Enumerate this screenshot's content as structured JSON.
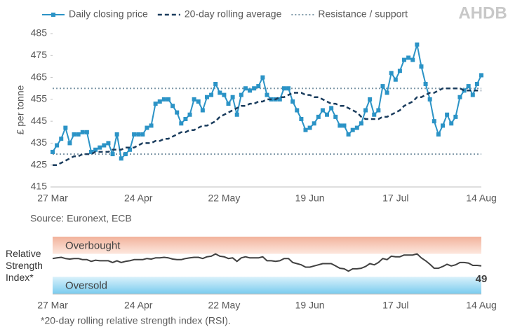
{
  "logo": "AHDB",
  "chart_data": [
    {
      "type": "line",
      "ylabel": "£ per tonne",
      "source": "Source: Euronext, ECB",
      "legend": "top",
      "categories": [
        "27 Mar",
        null,
        null,
        null,
        null,
        null,
        null,
        null,
        null,
        null,
        null,
        null,
        null,
        null,
        null,
        null,
        null,
        null,
        null,
        null,
        "24 Apr",
        null,
        null,
        null,
        null,
        null,
        null,
        null,
        null,
        null,
        null,
        null,
        null,
        null,
        null,
        null,
        null,
        null,
        null,
        null,
        "22 May",
        null,
        null,
        null,
        null,
        null,
        null,
        null,
        null,
        null,
        null,
        null,
        null,
        null,
        null,
        null,
        null,
        null,
        null,
        null,
        "19 Jun",
        null,
        null,
        null,
        null,
        null,
        null,
        null,
        null,
        null,
        null,
        null,
        null,
        null,
        null,
        null,
        null,
        null,
        null,
        null,
        "17 Jul",
        null,
        null,
        null,
        null,
        null,
        null,
        null,
        null,
        null,
        null,
        null,
        null,
        null,
        null,
        null,
        null,
        null,
        null,
        null,
        "14 Aug"
      ],
      "ylim": [
        415,
        485
      ],
      "yticks": [
        415,
        425,
        435,
        445,
        455,
        465,
        475,
        485
      ],
      "series": [
        {
          "name": "Daily closing price",
          "color": "#2b93c6",
          "markers": true,
          "dashed": false,
          "values": [
            431,
            434,
            437,
            442,
            435,
            439,
            439,
            440,
            440,
            431,
            432,
            433,
            434,
            435,
            430,
            439,
            428,
            430,
            432,
            439,
            439,
            439,
            442,
            443,
            453,
            454,
            455,
            455,
            452,
            449,
            444,
            446,
            448,
            455,
            454,
            450,
            456,
            457,
            462,
            458,
            457,
            453,
            456,
            448,
            457,
            460,
            459,
            460,
            461,
            465,
            457,
            455,
            455,
            455,
            460,
            460,
            454,
            450,
            446,
            441,
            442,
            444,
            447,
            450,
            448,
            451,
            447,
            443,
            443,
            439,
            441,
            442,
            444,
            450,
            455,
            448,
            450,
            461,
            458,
            467,
            464,
            468,
            473,
            474,
            473,
            480,
            470,
            462,
            455,
            445,
            439,
            443,
            448,
            444,
            447,
            456,
            459,
            461,
            457,
            462,
            466
          ]
        },
        {
          "name": "20-day rolling average",
          "color": "#1b3d5e",
          "markers": false,
          "dashed": true,
          "values": [
            425,
            425,
            426,
            427,
            428,
            429,
            429,
            430,
            430,
            430,
            431,
            431,
            431,
            431,
            432,
            432,
            432,
            433,
            433,
            433,
            434,
            435,
            435,
            435,
            436,
            436,
            437,
            437,
            438,
            439,
            440,
            440,
            441,
            441,
            442,
            443,
            443,
            444,
            445,
            447,
            448,
            449,
            450,
            451,
            452,
            452,
            453,
            453,
            454,
            454,
            455,
            455,
            455,
            456,
            456,
            457,
            458,
            458,
            458,
            457,
            457,
            456,
            456,
            455,
            454,
            453,
            453,
            452,
            452,
            451,
            450,
            449,
            447,
            446,
            446,
            446,
            446,
            447,
            447,
            448,
            449,
            450,
            452,
            453,
            454,
            456,
            456,
            457,
            458,
            458,
            459,
            460,
            460,
            460,
            460,
            460,
            459,
            459,
            459,
            459,
            459
          ]
        }
      ],
      "reference_lines": {
        "name": "Resistance / support",
        "color": "#7f98a8",
        "values": [
          460,
          430
        ]
      }
    },
    {
      "type": "line",
      "ylabel": "Relative Strength Index*",
      "footnote": "*20-day rolling relative strength index (RSI).",
      "label_last": true,
      "categories": [
        "27 Mar",
        null,
        null,
        null,
        null,
        null,
        null,
        null,
        null,
        null,
        null,
        null,
        null,
        null,
        null,
        null,
        null,
        null,
        null,
        null,
        "24 Apr",
        null,
        null,
        null,
        null,
        null,
        null,
        null,
        null,
        null,
        null,
        null,
        null,
        null,
        null,
        null,
        null,
        null,
        null,
        null,
        "22 May",
        null,
        null,
        null,
        null,
        null,
        null,
        null,
        null,
        null,
        null,
        null,
        null,
        null,
        null,
        null,
        null,
        null,
        null,
        null,
        "19 Jun",
        null,
        null,
        null,
        null,
        null,
        null,
        null,
        null,
        null,
        null,
        null,
        null,
        null,
        null,
        null,
        null,
        null,
        null,
        null,
        "17 Jul",
        null,
        null,
        null,
        null,
        null,
        null,
        null,
        null,
        null,
        null,
        null,
        null,
        null,
        null,
        null,
        null,
        null,
        null,
        null,
        "14 Aug"
      ],
      "ylim": [
        0,
        100
      ],
      "bands": [
        {
          "label": "Overbought",
          "range": [
            70,
            100
          ],
          "colors": [
            "#f2b29b",
            "#fde8df"
          ]
        },
        {
          "label": "Oversold",
          "range": [
            0,
            30
          ],
          "colors": [
            "#d9f1fb",
            "#79cbee"
          ]
        }
      ],
      "series": [
        {
          "name": "RSI",
          "color": "#404040",
          "markers": false,
          "dashed": false,
          "values": [
            62,
            63,
            64,
            62,
            61,
            62,
            62,
            60,
            60,
            57,
            59,
            58,
            58,
            58,
            55,
            58,
            55,
            57,
            58,
            60,
            60,
            60,
            62,
            61,
            63,
            63,
            64,
            63,
            61,
            60,
            60,
            62,
            63,
            64,
            64,
            62,
            65,
            66,
            70,
            66,
            65,
            62,
            63,
            57,
            63,
            65,
            63,
            63,
            63,
            65,
            58,
            58,
            57,
            58,
            62,
            62,
            55,
            53,
            51,
            47,
            47,
            49,
            51,
            53,
            53,
            53,
            49,
            45,
            44,
            40,
            44,
            44,
            45,
            48,
            53,
            51,
            55,
            62,
            60,
            66,
            65,
            65,
            68,
            68,
            68,
            70,
            63,
            58,
            52,
            45,
            45,
            48,
            52,
            49,
            51,
            55,
            55,
            54,
            50,
            50,
            49
          ]
        }
      ]
    }
  ]
}
